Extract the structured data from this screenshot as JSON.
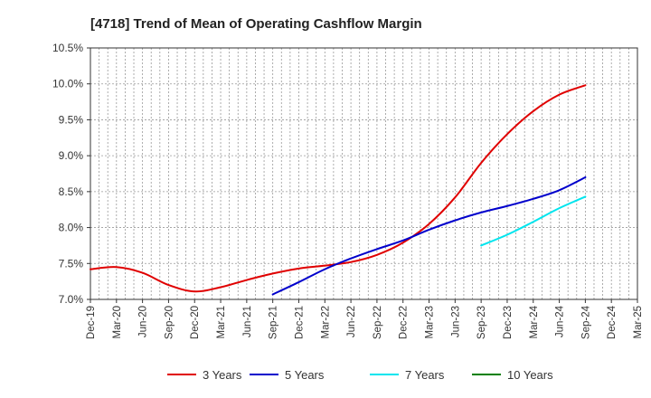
{
  "chart_data": {
    "type": "line",
    "title": "[4718]  Trend of Mean of Operating Cashflow Margin",
    "xlabel": "",
    "ylabel": "",
    "categories": [
      "Dec-19",
      "Mar-20",
      "Jun-20",
      "Sep-20",
      "Dec-20",
      "Mar-21",
      "Jun-21",
      "Sep-21",
      "Dec-21",
      "Mar-22",
      "Jun-22",
      "Sep-22",
      "Dec-22",
      "Mar-23",
      "Jun-23",
      "Sep-23",
      "Dec-23",
      "Mar-24",
      "Jun-24",
      "Sep-24",
      "Dec-24",
      "Mar-25"
    ],
    "ylim": [
      7.0,
      10.5
    ],
    "yticks": [
      7.0,
      7.5,
      8.0,
      8.5,
      9.0,
      9.5,
      10.0,
      10.5
    ],
    "ytick_labels": [
      "7.0%",
      "7.5%",
      "8.0%",
      "8.5%",
      "9.0%",
      "9.5%",
      "10.0%",
      "10.5%"
    ],
    "grid": true,
    "legend_position": "bottom",
    "series": [
      {
        "name": "3 Years",
        "color": "#e00000",
        "values": [
          7.42,
          7.45,
          7.37,
          7.2,
          7.11,
          7.17,
          7.27,
          7.36,
          7.43,
          7.47,
          7.52,
          7.62,
          7.79,
          8.05,
          8.42,
          8.9,
          9.3,
          9.62,
          9.85,
          9.98,
          null,
          null
        ]
      },
      {
        "name": "5 Years",
        "color": "#0000cc",
        "values": [
          null,
          null,
          null,
          null,
          null,
          null,
          null,
          7.07,
          7.24,
          7.42,
          7.57,
          7.7,
          7.82,
          7.97,
          8.1,
          8.21,
          8.3,
          8.4,
          8.52,
          8.7,
          null,
          null
        ]
      },
      {
        "name": "7 Years",
        "color": "#00e5ee",
        "values": [
          null,
          null,
          null,
          null,
          null,
          null,
          null,
          null,
          null,
          null,
          null,
          null,
          null,
          null,
          null,
          7.75,
          7.9,
          8.08,
          8.27,
          8.43,
          null,
          null
        ]
      },
      {
        "name": "10 Years",
        "color": "#008000",
        "values": [
          null,
          null,
          null,
          null,
          null,
          null,
          null,
          null,
          null,
          null,
          null,
          null,
          null,
          null,
          null,
          null,
          null,
          null,
          null,
          null,
          null,
          null
        ]
      }
    ]
  }
}
